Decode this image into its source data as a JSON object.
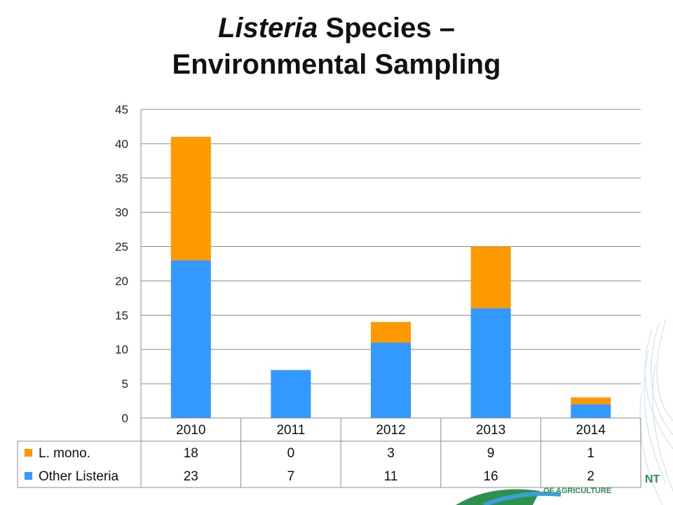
{
  "title": {
    "italic": "Listeria",
    "rest": " Species –",
    "line2": "Environmental Sampling"
  },
  "colors": {
    "l_mono": "#ff9900",
    "other": "#3399ff",
    "grid": "#8c8c8c"
  },
  "footer_logo_text": "NT",
  "footer_logo_subtext": "OF AGRICULTURE",
  "chart_data": {
    "type": "bar",
    "stacked": true,
    "categories": [
      "2010",
      "2011",
      "2012",
      "2013",
      "2014"
    ],
    "series": [
      {
        "name": "Other Listeria",
        "values": [
          23,
          7,
          11,
          16,
          2
        ]
      },
      {
        "name": "L. mono.",
        "values": [
          18,
          0,
          3,
          9,
          1
        ]
      }
    ],
    "ylim": [
      0,
      45
    ],
    "yticks": [
      0,
      5,
      10,
      15,
      20,
      25,
      30,
      35,
      40,
      45
    ],
    "grid": true,
    "legend": "data table below chart"
  }
}
